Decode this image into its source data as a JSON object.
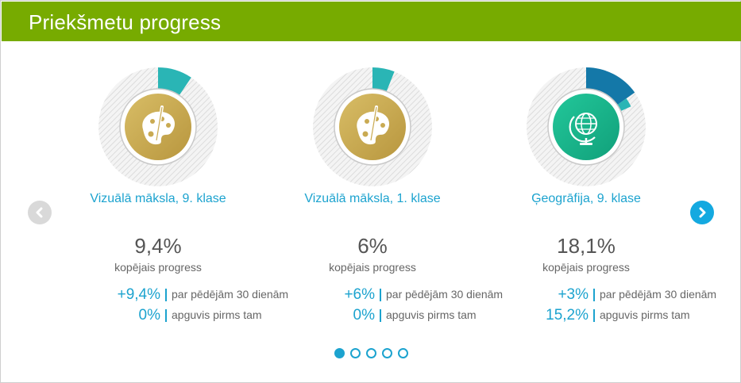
{
  "header": {
    "title": "Priekšmetu progress"
  },
  "icons": {
    "prev": "chevron-left-icon",
    "next": "chevron-right-icon"
  },
  "colors": {
    "header": "#77ab00",
    "accent": "#1ca3cf",
    "teal": "#2ab5b5",
    "dark_blue": "#1478a8",
    "gold": "#c9aa52",
    "green": "#1cb38a"
  },
  "cards": [
    {
      "subject": "Vizuālā māksla, 9. klase",
      "progress": "9,4%",
      "progress_label": "kopējais progress",
      "stat1_value": "+9,4%",
      "stat1_label": "par pēdējām 30 dienām",
      "stat2_value": "0%",
      "stat2_label": "apguvis pirms tam",
      "icon": "palette-icon",
      "ring_recent_fraction": 0.094,
      "ring_prior_fraction": 0
    },
    {
      "subject": "Vizuālā māksla, 1. klase",
      "progress": "6%",
      "progress_label": "kopējais progress",
      "stat1_value": "+6%",
      "stat1_label": "par pēdējām 30 dienām",
      "stat2_value": "0%",
      "stat2_label": "apguvis pirms tam",
      "icon": "palette-icon",
      "ring_recent_fraction": 0.06,
      "ring_prior_fraction": 0
    },
    {
      "subject": "Ģeogrāfija, 9. klase",
      "progress": "18,1%",
      "progress_label": "kopējais progress",
      "stat1_value": "+3%",
      "stat1_label": "par pēdējām 30 dienām",
      "stat2_value": "15,2%",
      "stat2_label": "apguvis pirms tam",
      "icon": "globe-icon",
      "ring_recent_fraction": 0.03,
      "ring_prior_fraction": 0.152
    }
  ],
  "pagination": {
    "total": 5,
    "active": 0
  }
}
